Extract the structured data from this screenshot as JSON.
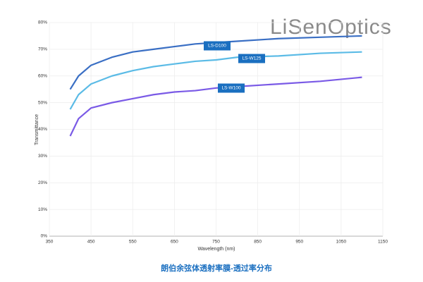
{
  "chart_data": {
    "type": "line",
    "logo": "LiSenOptics",
    "caption": "朗伯余弦体透射率膜-透过率分布",
    "x_label": "Wavelength (nm)",
    "y_label": "Transmittance",
    "x": [
      400,
      420,
      450,
      500,
      550,
      600,
      650,
      700,
      750,
      800,
      900,
      1000,
      1100
    ],
    "series": [
      {
        "name": "LS-D100",
        "color": "#3a6fc4",
        "values": [
          55,
          60,
          64,
          67,
          69,
          70,
          71,
          72,
          72.5,
          73,
          74,
          74.5,
          75
        ]
      },
      {
        "name": "LS-W125",
        "color": "#5bbbe6",
        "values": [
          47.5,
          53,
          57,
          60,
          62,
          63.5,
          64.5,
          65.5,
          66,
          67,
          67.5,
          68.5,
          69
        ]
      },
      {
        "name": "LS-W100",
        "color": "#7a5ae6",
        "values": [
          37.5,
          44,
          48,
          50,
          51.5,
          53,
          54,
          54.5,
          55.5,
          56,
          57,
          58,
          59.5
        ]
      }
    ],
    "xlim": [
      350,
      1150
    ],
    "xticks": [
      350,
      450,
      550,
      650,
      750,
      850,
      950,
      1050,
      1150
    ],
    "ylim": [
      0,
      80
    ],
    "yticks": [
      {
        "value": 0,
        "label": "0%"
      },
      {
        "value": 10,
        "label": "10%"
      },
      {
        "value": 20,
        "label": "20%"
      },
      {
        "value": 30,
        "label": "30%"
      },
      {
        "value": 40,
        "label": "40%"
      },
      {
        "value": 50,
        "label": "50%"
      },
      {
        "value": 60,
        "label": "60%"
      },
      {
        "value": 70,
        "label": "70%"
      },
      {
        "value": 80,
        "label": "80%"
      }
    ],
    "grid": true
  }
}
